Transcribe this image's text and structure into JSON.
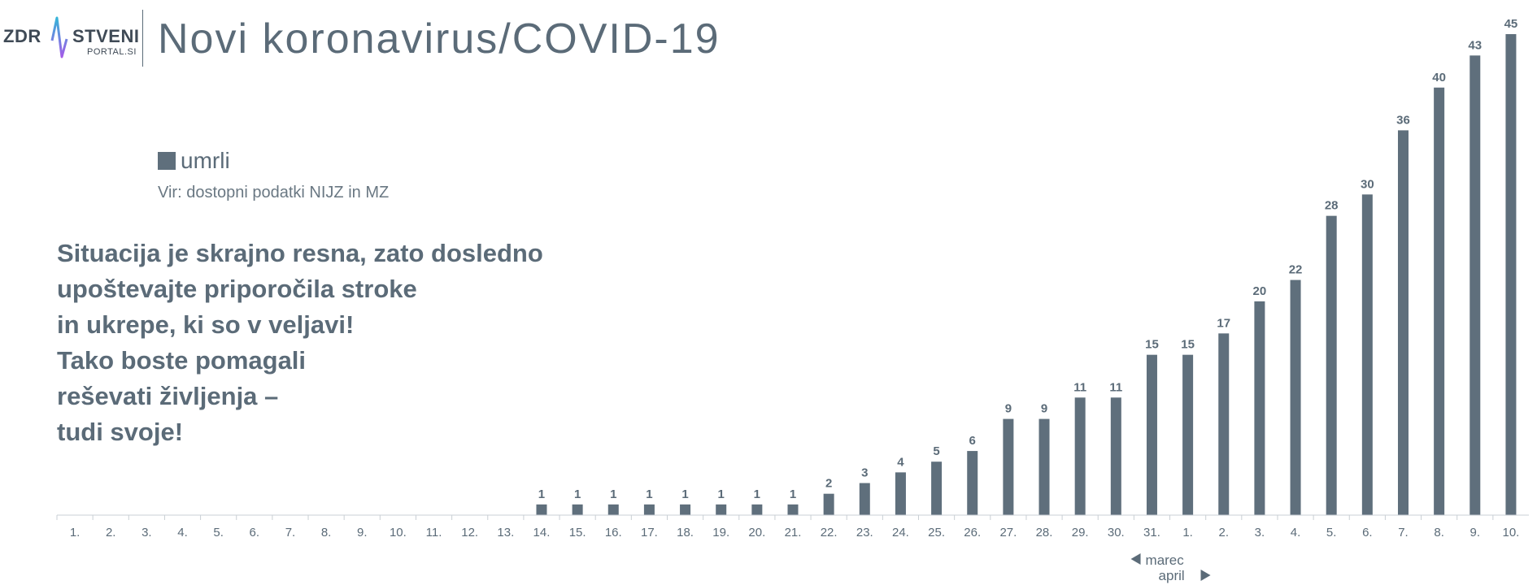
{
  "header": {
    "logo_left": "ZDR",
    "logo_right": "STVENI",
    "logo_sub": "PORTAL.SI",
    "title": "Novi koronavirus/COVID-19"
  },
  "legend": {
    "label": "umrli"
  },
  "source": "Vir: dostopni podatki NIJZ in MZ",
  "message": [
    "Situacija je skrajno resna, zato dosledno",
    "upoštevajte priporočila stroke",
    "in ukrepe, ki so v veljavi!",
    "Tako boste pomagali",
    "reševati življenja –",
    "tudi svoje!"
  ],
  "month_marker": {
    "left": "marec",
    "right": "april"
  },
  "colors": {
    "bar": "#5f6f7c",
    "text": "#5b6b78",
    "logo_pulse": "#8e6ee8"
  },
  "chart_data": {
    "type": "bar",
    "categories": [
      "1.",
      "2.",
      "3.",
      "4.",
      "5.",
      "6.",
      "7.",
      "8.",
      "9.",
      "10.",
      "11.",
      "12.",
      "13.",
      "14.",
      "15.",
      "16.",
      "17.",
      "18.",
      "19.",
      "20.",
      "21.",
      "22.",
      "23.",
      "24.",
      "25.",
      "26.",
      "27.",
      "28.",
      "29.",
      "30.",
      "31.",
      "1.",
      "2.",
      "3.",
      "4.",
      "5.",
      "6.",
      "7.",
      "8.",
      "9.",
      "10."
    ],
    "series": [
      {
        "name": "umrli",
        "values": [
          null,
          null,
          null,
          null,
          null,
          null,
          null,
          null,
          null,
          null,
          null,
          null,
          null,
          1,
          1,
          1,
          1,
          1,
          1,
          1,
          1,
          2,
          3,
          4,
          5,
          6,
          9,
          9,
          11,
          11,
          15,
          15,
          17,
          20,
          22,
          28,
          30,
          36,
          40,
          43,
          45
        ]
      }
    ],
    "title": "Novi koronavirus/COVID-19",
    "xlabel": "",
    "ylabel": "",
    "ylim": [
      0,
      45
    ],
    "grid": false,
    "legend": "top-left"
  }
}
